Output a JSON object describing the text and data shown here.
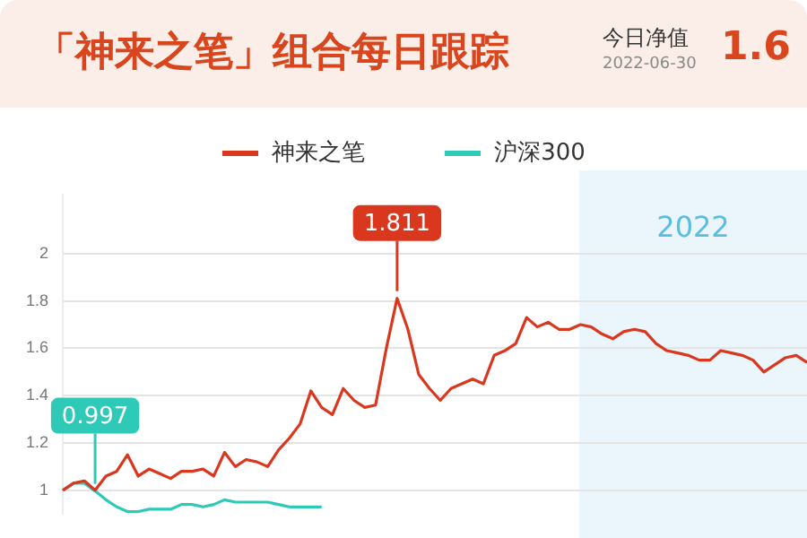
{
  "chart_data": {
    "type": "line",
    "title": "「神来之笔」组合每日跟踪",
    "annotations": [
      "今日净值",
      "2022-06-30",
      "1.6",
      "2022",
      {
        "text": "1.811",
        "y": 1.811
      },
      {
        "text": "0.997",
        "y": 0.997
      }
    ],
    "categories": [
      null,
      null,
      null,
      null,
      null,
      null,
      null,
      null,
      null,
      null,
      null,
      null,
      null,
      null,
      null,
      null,
      null,
      null,
      null,
      null,
      null,
      null,
      null,
      null,
      null,
      null,
      null,
      null,
      null,
      null,
      null,
      null,
      null,
      null,
      null,
      null,
      null,
      null,
      null,
      null,
      null,
      null,
      null,
      null,
      null,
      null,
      null,
      null,
      null,
      null,
      null,
      null,
      null,
      null,
      null,
      null,
      null,
      null,
      null,
      null,
      null,
      null,
      null,
      null,
      null,
      null,
      null,
      null,
      null,
      null
    ],
    "series": [
      {
        "name": "神来之笔",
        "color": "#d9381e",
        "values": [
          1.0,
          1.03,
          1.04,
          1.0,
          1.06,
          1.08,
          1.15,
          1.06,
          1.09,
          1.07,
          1.05,
          1.08,
          1.08,
          1.09,
          1.06,
          1.16,
          1.1,
          1.13,
          1.12,
          1.1,
          1.17,
          1.22,
          1.28,
          1.42,
          1.35,
          1.32,
          1.43,
          1.38,
          1.35,
          1.36,
          1.6,
          1.811,
          1.68,
          1.49,
          1.43,
          1.38,
          1.43,
          1.45,
          1.47,
          1.45,
          1.57,
          1.59,
          1.62,
          1.73,
          1.69,
          1.71,
          1.68,
          1.68,
          1.7,
          1.69,
          1.66,
          1.64,
          1.67,
          1.68,
          1.67,
          1.62,
          1.59,
          1.58,
          1.57,
          1.55,
          1.55,
          1.59,
          1.58,
          1.57,
          1.55,
          1.5,
          1.53,
          1.56,
          1.57,
          1.54
        ]
      },
      {
        "name": "沪深300",
        "color": "#2ec9b7",
        "values": [
          1.0,
          1.03,
          1.03,
          0.997,
          0.96,
          0.93,
          0.91,
          0.91,
          0.92,
          0.92,
          0.92,
          0.94,
          0.94,
          0.93,
          0.94,
          0.96,
          0.95,
          0.95,
          0.95,
          0.95,
          0.94,
          0.93,
          0.93,
          0.93,
          0.93,
          null,
          null,
          null,
          null,
          null,
          null,
          null,
          null,
          null,
          null,
          null,
          null,
          null,
          null,
          null,
          null,
          null,
          null,
          null,
          null,
          null,
          null,
          null,
          null,
          null,
          null,
          null,
          null,
          null,
          null,
          null,
          null,
          null,
          null,
          null,
          null,
          null,
          null,
          null,
          null,
          null,
          null,
          null,
          null,
          null
        ]
      }
    ],
    "ylim": [
      0.9,
      2.25
    ],
    "yticks": [
      1,
      1.2,
      1.4,
      1.6,
      1.8,
      2
    ],
    "grid": "y",
    "legend": "top",
    "tick_labels": "y",
    "marker": "none",
    "line_style": "solid"
  }
}
